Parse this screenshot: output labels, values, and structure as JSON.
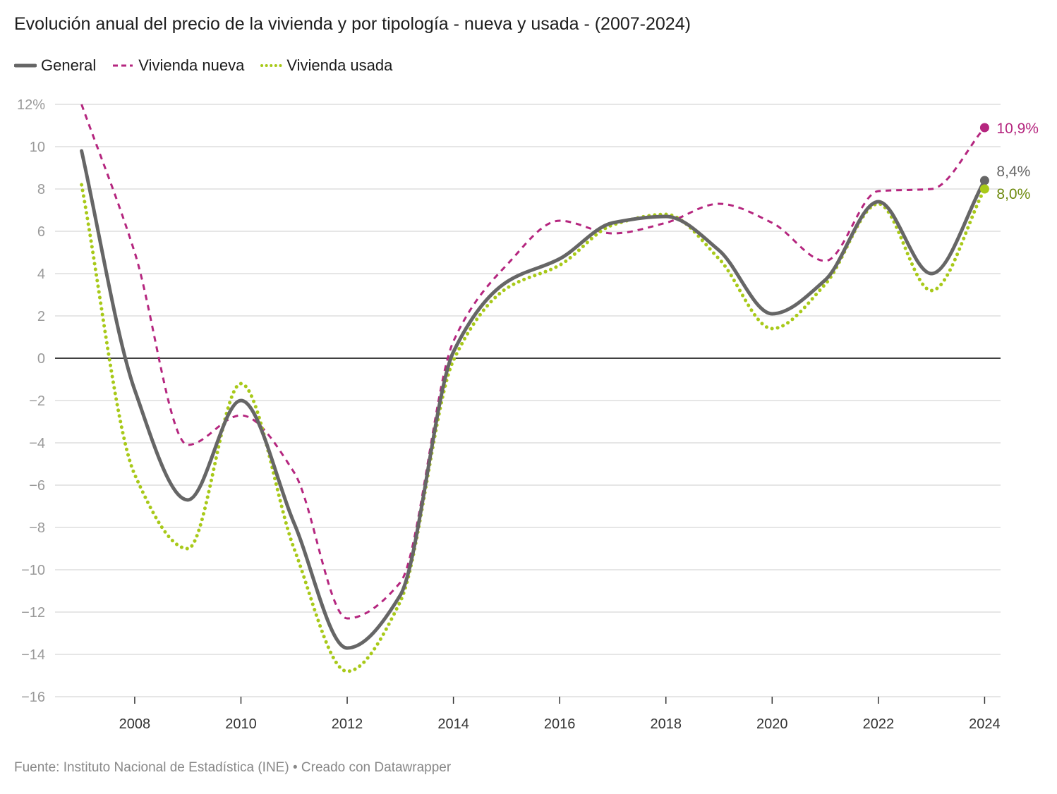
{
  "title": "Evolución anual del precio de la vivienda y por tipología - nueva y usada - (2007-2024)",
  "footer": "Fuente: Instituto Nacional de Estadística (INE) • Creado con Datawrapper",
  "colors": {
    "general": "#666666",
    "nueva": "#b5267f",
    "usada": "#a8c919",
    "usada_label": "#6e8a0e",
    "grid": "#dddddd",
    "zero": "#000000"
  },
  "chart_data": {
    "type": "line",
    "title": "Evolución anual del precio de la vivienda y por tipología - nueva y usada - (2007-2024)",
    "x": [
      2007,
      2008,
      2009,
      2010,
      2011,
      2012,
      2013,
      2014,
      2015,
      2016,
      2017,
      2018,
      2019,
      2020,
      2021,
      2022,
      2023,
      2024
    ],
    "xlabel": "",
    "ylabel": "",
    "xlim": [
      2006.5,
      2024.3
    ],
    "ylim": [
      -16,
      12
    ],
    "y_ticks": [
      {
        "value": 12,
        "label": "12%"
      },
      {
        "value": 10,
        "label": "10"
      },
      {
        "value": 8,
        "label": "8"
      },
      {
        "value": 6,
        "label": "6"
      },
      {
        "value": 4,
        "label": "4"
      },
      {
        "value": 2,
        "label": "2"
      },
      {
        "value": 0,
        "label": "0"
      },
      {
        "value": -2,
        "label": "−2"
      },
      {
        "value": -4,
        "label": "−4"
      },
      {
        "value": -6,
        "label": "−6"
      },
      {
        "value": -8,
        "label": "−8"
      },
      {
        "value": -10,
        "label": "−10"
      },
      {
        "value": -12,
        "label": "−12"
      },
      {
        "value": -14,
        "label": "−14"
      },
      {
        "value": -16,
        "label": "−16"
      }
    ],
    "x_ticks": [
      {
        "value": 2008,
        "label": "2008"
      },
      {
        "value": 2010,
        "label": "2010"
      },
      {
        "value": 2012,
        "label": "2012"
      },
      {
        "value": 2014,
        "label": "2014"
      },
      {
        "value": 2016,
        "label": "2016"
      },
      {
        "value": 2018,
        "label": "2018"
      },
      {
        "value": 2020,
        "label": "2020"
      },
      {
        "value": 2022,
        "label": "2022"
      },
      {
        "value": 2024,
        "label": "2024"
      }
    ],
    "grid": true,
    "legend_position": "top-left",
    "series": [
      {
        "name": "General",
        "key": "general",
        "style": "solid",
        "values": [
          9.8,
          -1.5,
          -6.7,
          -2.0,
          -7.8,
          -13.7,
          -11.2,
          0.3,
          3.6,
          4.7,
          6.4,
          6.7,
          5.1,
          2.1,
          3.7,
          7.4,
          4.0,
          8.4
        ],
        "end_label": "8,4%"
      },
      {
        "name": "Vivienda nueva",
        "key": "nueva",
        "style": "dashed",
        "values": [
          12.0,
          5.0,
          -4.1,
          -2.7,
          -5.4,
          -12.3,
          -10.6,
          0.8,
          4.4,
          6.5,
          5.9,
          6.4,
          7.3,
          6.4,
          4.6,
          7.9,
          8.0,
          10.9
        ],
        "end_label": "10,9%"
      },
      {
        "name": "Vivienda usada",
        "key": "usada",
        "style": "dotted",
        "values": [
          8.2,
          -5.5,
          -9.0,
          -1.2,
          -9.0,
          -14.8,
          -11.5,
          -0.1,
          3.3,
          4.4,
          6.3,
          6.8,
          4.7,
          1.4,
          3.5,
          7.3,
          3.2,
          8.0
        ],
        "end_label": "8,0%"
      }
    ]
  }
}
